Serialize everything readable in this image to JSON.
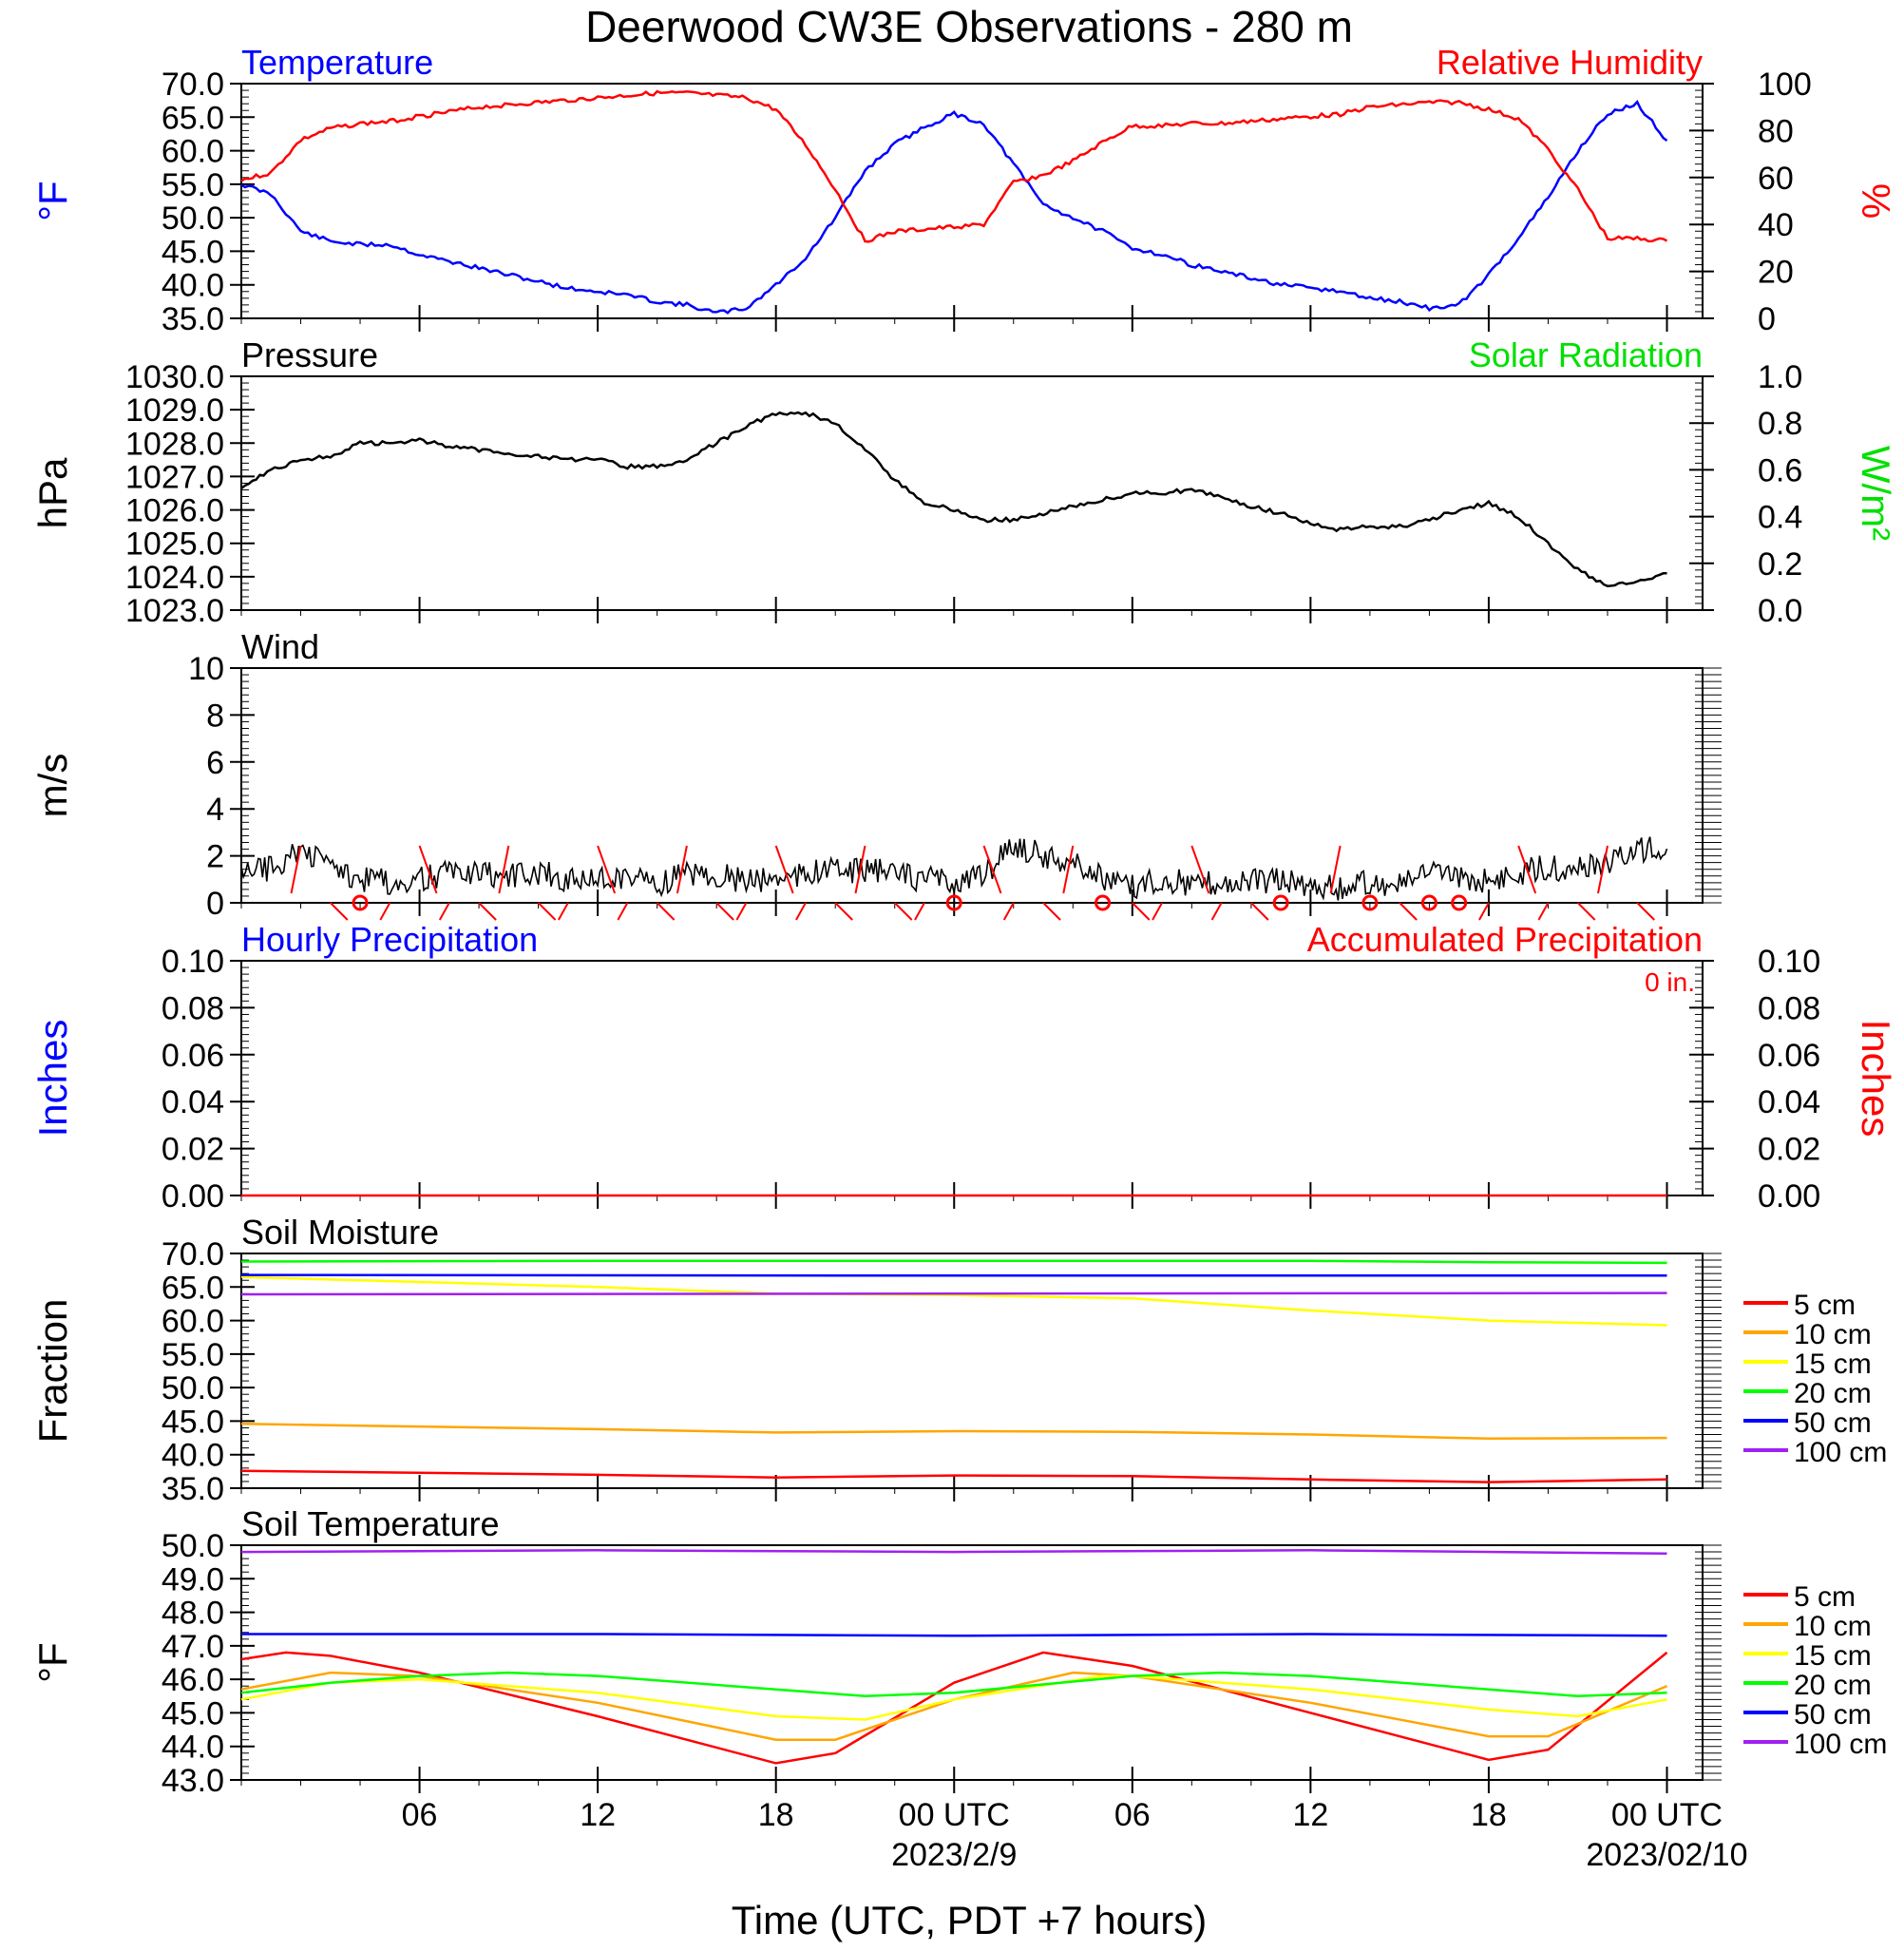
{
  "title": "Deerwood CW3E Observations - 280 m",
  "xlabel": "Time (UTC, PDT +7 hours)",
  "x_ticks": [
    {
      "hour": 6,
      "label": "06"
    },
    {
      "hour": 12,
      "label": "12"
    },
    {
      "hour": 18,
      "label": "18"
    },
    {
      "hour": 24,
      "label": "00 UTC",
      "date": "2023/2/9"
    },
    {
      "hour": 30,
      "label": "06"
    },
    {
      "hour": 36,
      "label": "12"
    },
    {
      "hour": 42,
      "label": "18"
    },
    {
      "hour": 48,
      "label": "00 UTC",
      "date": "2023/02/10"
    }
  ],
  "colors": {
    "temperature": "#0000ff",
    "humidity": "#ff0000",
    "solar": "#00e000",
    "accum": "#ff0000",
    "hourly": "#0000ff",
    "text": "#000000"
  },
  "chart_data": [
    {
      "id": "temp_rh",
      "type": "line",
      "left_title": "Temperature",
      "right_title": "Relative Humidity",
      "ylabel_left": "°F",
      "ylabel_right": "%",
      "ylim": [
        35,
        70
      ],
      "ylim_right": [
        0,
        100
      ],
      "y_ticks": [
        "35.0",
        "40.0",
        "45.0",
        "50.0",
        "55.0",
        "60.0",
        "65.0",
        "70.0"
      ],
      "y_ticks_right": [
        "0",
        "20",
        "40",
        "60",
        "80",
        "100"
      ],
      "series": [
        {
          "name": "Temperature",
          "color": "#0000ff",
          "axis": "left",
          "x": [
            0,
            1,
            2,
            3,
            4,
            5,
            6,
            7,
            8,
            9,
            10,
            11,
            12,
            13,
            14,
            15,
            16,
            17,
            18,
            19,
            20,
            21,
            22,
            23,
            24,
            25,
            26,
            27,
            28,
            29,
            30,
            31,
            32,
            33,
            34,
            35,
            36,
            37,
            38,
            39,
            40,
            41,
            42,
            43,
            44,
            45,
            46,
            47,
            48
          ],
          "values": [
            55,
            53.5,
            48,
            46.5,
            46,
            46,
            44.5,
            43.5,
            42.5,
            41.5,
            40.5,
            39.5,
            39,
            38.5,
            37.5,
            37,
            35.8,
            36.5,
            40,
            44,
            50,
            57,
            61,
            63.5,
            65.5,
            64,
            58,
            52,
            50,
            48,
            45.5,
            44.5,
            43,
            42,
            41,
            40,
            39.5,
            39,
            38,
            37.5,
            36.5,
            37,
            41.5,
            47,
            53,
            60,
            65.5,
            67,
            61.5
          ]
        },
        {
          "name": "Relative Humidity",
          "color": "#ff0000",
          "axis": "right",
          "x": [
            0,
            1,
            2,
            3,
            4,
            5,
            6,
            7,
            8,
            9,
            10,
            11,
            12,
            13,
            14,
            15,
            16,
            17,
            18,
            19,
            20,
            21,
            22,
            23,
            24,
            25,
            26,
            27,
            28,
            29,
            30,
            31,
            32,
            33,
            34,
            35,
            36,
            37,
            38,
            39,
            40,
            41,
            42,
            43,
            44,
            45,
            46,
            47,
            48
          ],
          "values": [
            59,
            62,
            76,
            81,
            83,
            84,
            86,
            88,
            90,
            91,
            92,
            93,
            94,
            95,
            96,
            96,
            95,
            94,
            89,
            74,
            55,
            33,
            37,
            38,
            39,
            40,
            58,
            61,
            67,
            75,
            82,
            82,
            83,
            83,
            84,
            85,
            86,
            87,
            90,
            91,
            92,
            92,
            89,
            85,
            72,
            55,
            34,
            34,
            33
          ]
        }
      ]
    },
    {
      "id": "pressure",
      "type": "line",
      "left_title": "Pressure",
      "right_title": "Solar Radiation",
      "ylabel_left": "hPa",
      "ylabel_right": "W/m²",
      "ylim": [
        1023,
        1030
      ],
      "ylim_right": [
        0,
        1
      ],
      "y_ticks": [
        "1023.0",
        "1024.0",
        "1025.0",
        "1026.0",
        "1027.0",
        "1028.0",
        "1029.0",
        "1030.0"
      ],
      "y_ticks_right": [
        "0.0",
        "0.2",
        "0.4",
        "0.6",
        "0.8",
        "1.0"
      ],
      "series": [
        {
          "name": "Pressure",
          "color": "#000000",
          "axis": "left",
          "x": [
            0,
            1,
            2,
            3,
            4,
            5,
            6,
            7,
            8,
            9,
            10,
            11,
            12,
            13,
            14,
            15,
            16,
            17,
            18,
            19,
            20,
            21,
            22,
            23,
            24,
            25,
            26,
            27,
            28,
            29,
            30,
            31,
            32,
            33,
            34,
            35,
            36,
            37,
            38,
            39,
            40,
            41,
            42,
            43,
            44,
            45,
            46,
            47,
            48
          ],
          "values": [
            1026.7,
            1027.2,
            1027.5,
            1027.6,
            1028.0,
            1028.0,
            1028.1,
            1027.9,
            1027.8,
            1027.7,
            1027.6,
            1027.5,
            1027.5,
            1027.3,
            1027.3,
            1027.5,
            1028.0,
            1028.5,
            1028.9,
            1028.9,
            1028.6,
            1027.8,
            1026.9,
            1026.2,
            1026.0,
            1025.7,
            1025.7,
            1025.9,
            1026.1,
            1026.3,
            1026.5,
            1026.5,
            1026.6,
            1026.4,
            1026.1,
            1025.9,
            1025.6,
            1025.4,
            1025.5,
            1025.5,
            1025.7,
            1026.0,
            1026.2,
            1025.8,
            1025.0,
            1024.2,
            1023.7,
            1023.9,
            1024.1
          ]
        }
      ]
    },
    {
      "id": "wind",
      "type": "line",
      "left_title": "Wind",
      "ylabel_left": "m/s",
      "ylim": [
        0,
        10
      ],
      "y_ticks": [
        "0",
        "2",
        "4",
        "6",
        "8",
        "10"
      ],
      "series": [
        {
          "name": "Wind",
          "color": "#000000",
          "axis": "left",
          "x": [
            0,
            1,
            2,
            3,
            4,
            5,
            6,
            7,
            8,
            9,
            10,
            11,
            12,
            13,
            14,
            15,
            16,
            17,
            18,
            19,
            20,
            21,
            22,
            23,
            24,
            25,
            26,
            27,
            28,
            29,
            30,
            31,
            32,
            33,
            34,
            35,
            36,
            37,
            38,
            39,
            40,
            41,
            42,
            43,
            44,
            45,
            46,
            47,
            48
          ],
          "values": [
            1.2,
            1.5,
            2.2,
            1.6,
            1.0,
            0.9,
            1.0,
            1.3,
            1.2,
            1.1,
            1.3,
            1.0,
            1.0,
            1.2,
            0.8,
            1.3,
            1.2,
            0.9,
            1.1,
            1.2,
            1.4,
            1.4,
            1.2,
            1.0,
            1.0,
            1.1,
            2.5,
            2.0,
            1.8,
            1.0,
            0.7,
            1.0,
            0.8,
            0.9,
            0.9,
            1.0,
            0.8,
            0.6,
            0.9,
            0.8,
            1.2,
            1.0,
            1.0,
            1.3,
            1.5,
            1.4,
            1.8,
            2.2,
            2.3
          ]
        }
      ],
      "calm_hours": [
        4,
        24,
        29,
        35,
        38,
        40,
        41
      ]
    },
    {
      "id": "precip",
      "type": "line",
      "left_title": "Hourly Precipitation",
      "right_title": "Accumulated Precipitation",
      "annotation": "0 in.",
      "ylabel_left": "Inches",
      "ylabel_right": "Inches",
      "ylim": [
        0,
        0.1
      ],
      "ylim_right": [
        0,
        0.1
      ],
      "y_ticks": [
        "0.00",
        "0.02",
        "0.04",
        "0.06",
        "0.08",
        "0.10"
      ],
      "y_ticks_right": [
        "0.00",
        "0.02",
        "0.04",
        "0.06",
        "0.08",
        "0.10"
      ],
      "series": [
        {
          "name": "Accumulated Precipitation",
          "color": "#ff0000",
          "axis": "right",
          "x": [
            0,
            48
          ],
          "values": [
            0,
            0
          ]
        }
      ]
    },
    {
      "id": "soil_moisture",
      "type": "line",
      "left_title": "Soil Moisture",
      "ylabel_left": "Fraction",
      "ylim": [
        35,
        70
      ],
      "y_ticks": [
        "35.0",
        "40.0",
        "45.0",
        "50.0",
        "55.0",
        "60.0",
        "65.0",
        "70.0"
      ],
      "legend": [
        "5 cm",
        "10 cm",
        "15 cm",
        "20 cm",
        "50 cm",
        "100 cm"
      ],
      "series": [
        {
          "name": "5 cm",
          "color": "#ff0000",
          "x": [
            0,
            12,
            18,
            24,
            30,
            36,
            42,
            48
          ],
          "values": [
            37.6,
            37.0,
            36.6,
            36.9,
            36.8,
            36.3,
            35.9,
            36.3
          ]
        },
        {
          "name": "10 cm",
          "color": "#ffa500",
          "x": [
            0,
            12,
            18,
            24,
            30,
            36,
            42,
            48
          ],
          "values": [
            44.6,
            43.8,
            43.3,
            43.5,
            43.4,
            43.0,
            42.4,
            42.5
          ]
        },
        {
          "name": "15 cm",
          "color": "#ffff00",
          "x": [
            0,
            12,
            18,
            24,
            30,
            36,
            42,
            48
          ],
          "values": [
            66.5,
            65.0,
            64.0,
            63.8,
            63.3,
            61.5,
            60.0,
            59.3
          ]
        },
        {
          "name": "20 cm",
          "color": "#00ff00",
          "x": [
            0,
            12,
            24,
            36,
            42,
            48
          ],
          "values": [
            68.8,
            68.9,
            68.9,
            68.9,
            68.7,
            68.6
          ]
        },
        {
          "name": "50 cm",
          "color": "#0000ff",
          "x": [
            0,
            24,
            48
          ],
          "values": [
            66.8,
            66.7,
            66.7
          ]
        },
        {
          "name": "100 cm",
          "color": "#a020f0",
          "x": [
            0,
            24,
            48
          ],
          "values": [
            63.9,
            64.0,
            64.1
          ]
        }
      ]
    },
    {
      "id": "soil_temperature",
      "type": "line",
      "left_title": "Soil Temperature",
      "ylabel_left": "°F",
      "ylim": [
        43,
        50
      ],
      "y_ticks": [
        "43.0",
        "44.0",
        "45.0",
        "46.0",
        "47.0",
        "48.0",
        "49.0",
        "50.0"
      ],
      "legend": [
        "5 cm",
        "10 cm",
        "15 cm",
        "20 cm",
        "50 cm",
        "100 cm"
      ],
      "series": [
        {
          "name": "5 cm",
          "color": "#ff0000",
          "x": [
            0,
            1.5,
            3,
            6,
            12,
            18,
            20,
            24,
            27,
            30,
            36,
            42,
            44,
            48
          ],
          "values": [
            46.6,
            46.8,
            46.7,
            46.2,
            44.9,
            43.5,
            43.8,
            45.9,
            46.8,
            46.4,
            45.0,
            43.6,
            43.9,
            46.8
          ]
        },
        {
          "name": "10 cm",
          "color": "#ffa500",
          "x": [
            0,
            3,
            6,
            12,
            18,
            20,
            24,
            28,
            30,
            36,
            42,
            44,
            48
          ],
          "values": [
            45.7,
            46.2,
            46.1,
            45.3,
            44.2,
            44.2,
            45.4,
            46.2,
            46.1,
            45.3,
            44.3,
            44.3,
            45.8
          ]
        },
        {
          "name": "15 cm",
          "color": "#ffff00",
          "x": [
            0,
            3,
            6,
            12,
            18,
            21,
            24,
            29,
            30,
            36,
            42,
            45,
            48
          ],
          "values": [
            45.4,
            45.9,
            46.0,
            45.6,
            44.9,
            44.8,
            45.4,
            46.1,
            46.1,
            45.7,
            45.1,
            44.9,
            45.4
          ]
        },
        {
          "name": "20 cm",
          "color": "#00ff00",
          "x": [
            0,
            3,
            6,
            9,
            12,
            18,
            21,
            24,
            30,
            33,
            36,
            42,
            45,
            48
          ],
          "values": [
            45.6,
            45.9,
            46.1,
            46.2,
            46.1,
            45.7,
            45.5,
            45.6,
            46.1,
            46.2,
            46.1,
            45.7,
            45.5,
            45.6
          ]
        },
        {
          "name": "50 cm",
          "color": "#0000ff",
          "x": [
            0,
            12,
            24,
            36,
            48
          ],
          "values": [
            47.35,
            47.35,
            47.3,
            47.35,
            47.3
          ]
        },
        {
          "name": "100 cm",
          "color": "#a020f0",
          "x": [
            0,
            12,
            24,
            36,
            48
          ],
          "values": [
            49.8,
            49.85,
            49.8,
            49.85,
            49.75
          ]
        }
      ]
    }
  ]
}
